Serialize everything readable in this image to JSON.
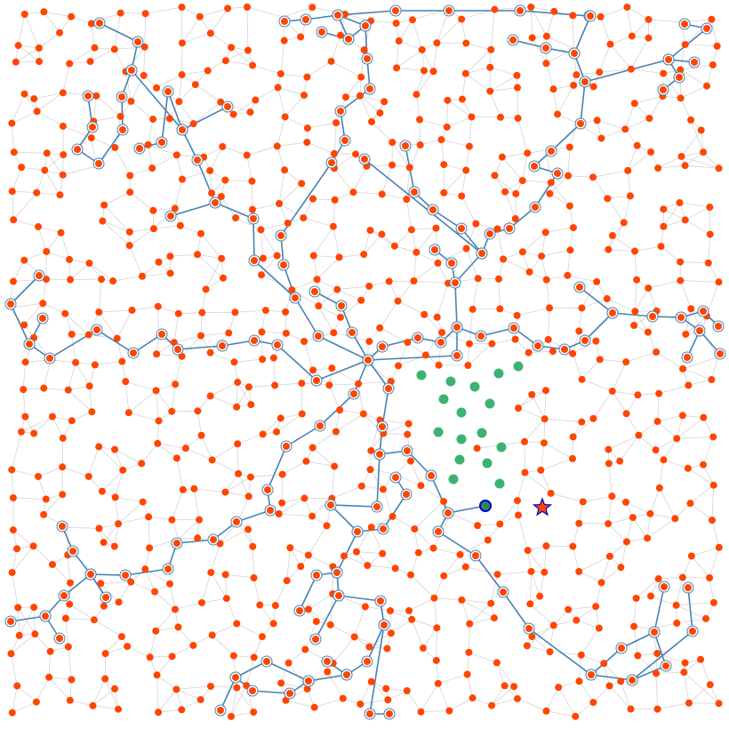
{
  "colors": {
    "background": "#ffffff",
    "mesh_edge": "#d4d4d4",
    "tree_edge": "#4682b4",
    "node_fill": "#ff4500",
    "node_ring": "#4682b4",
    "frontier_fill": "#3cb371",
    "current_fill": "#2e8b57",
    "current_ring": "#0000cd",
    "goal_fill": "#ff4500",
    "goal_ring": "#0000cd"
  },
  "icons": {
    "goal": "star-icon",
    "current": "circle-icon"
  }
}
